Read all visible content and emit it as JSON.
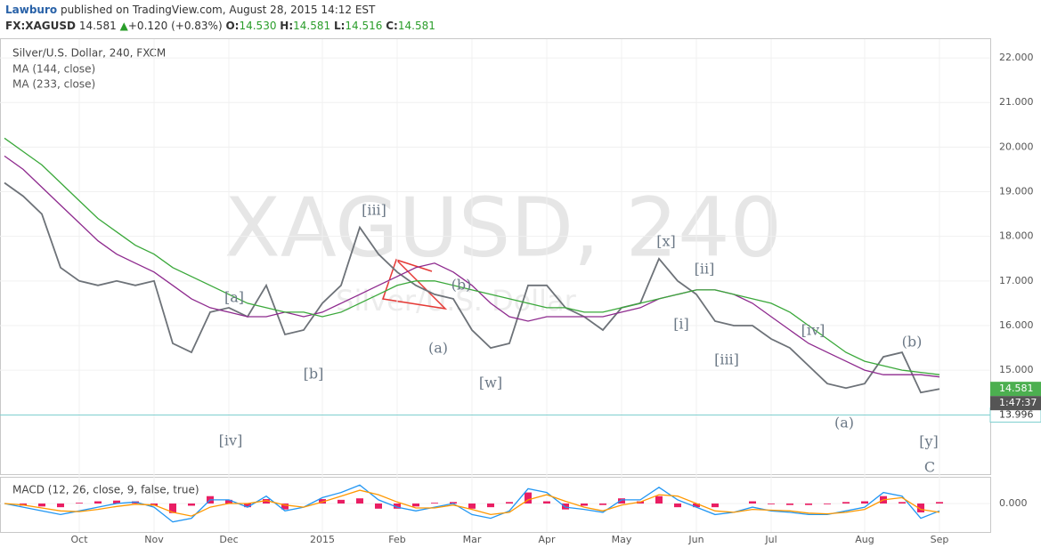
{
  "header": {
    "author": "Lawburo",
    "published": "published on TradingView.com, August 28, 2015 14:12 EST"
  },
  "quote": {
    "symbol": "FX:XAGUSD",
    "last": "14.581",
    "change": "+0.120 (+0.83%)",
    "open_label": "O:",
    "open": "14.530",
    "high_label": "H:",
    "high": "14.581",
    "low_label": "L:",
    "low": "14.516",
    "close_label": "C:",
    "close": "14.581"
  },
  "watermark": {
    "symbol": "XAGUSD, 240",
    "name": "Silver/U.S. Dollar"
  },
  "chart_data": [
    {
      "type": "line",
      "title": "Silver/U.S. Dollar, 240, FXCM",
      "categories": [
        null,
        null,
        null,
        null,
        "Oct",
        null,
        null,
        null,
        "Nov",
        null,
        null,
        null,
        "Dec",
        null,
        null,
        null,
        null,
        "2015",
        null,
        null,
        null,
        "Feb",
        null,
        null,
        null,
        "Mar",
        null,
        null,
        null,
        "Apr",
        null,
        null,
        null,
        "May",
        null,
        null,
        null,
        "Jun",
        null,
        null,
        null,
        "Jul",
        null,
        null,
        null,
        null,
        "Aug",
        null,
        null,
        null,
        "Sep"
      ],
      "series": [
        {
          "color": "#6d7278",
          "values": [
            19.2,
            18.9,
            18.5,
            17.3,
            17.0,
            16.9,
            17.0,
            16.9,
            17.0,
            15.6,
            15.4,
            16.3,
            16.4,
            16.2,
            16.9,
            15.8,
            15.9,
            16.5,
            16.9,
            18.2,
            17.6,
            17.2,
            16.9,
            16.7,
            16.6,
            15.9,
            15.5,
            15.6,
            16.9,
            16.9,
            16.4,
            16.2,
            15.9,
            16.4,
            16.5,
            17.5,
            17.0,
            16.7,
            16.1,
            16.0,
            16.0,
            15.7,
            15.5,
            15.1,
            14.7,
            14.6,
            14.7,
            15.3,
            15.4,
            14.5,
            14.58
          ]
        },
        {
          "name": "MA (144, close)",
          "color": "#8e2a8e",
          "values": [
            19.8,
            19.5,
            19.1,
            18.7,
            18.3,
            17.9,
            17.6,
            17.4,
            17.2,
            16.9,
            16.6,
            16.4,
            16.3,
            16.2,
            16.2,
            16.3,
            16.2,
            16.3,
            16.5,
            16.7,
            16.9,
            17.1,
            17.3,
            17.4,
            17.2,
            16.9,
            16.5,
            16.2,
            16.1,
            16.2,
            16.2,
            16.2,
            16.2,
            16.3,
            16.4,
            16.6,
            16.7,
            16.8,
            16.8,
            16.7,
            16.5,
            16.2,
            15.9,
            15.6,
            15.4,
            15.2,
            15.0,
            14.9,
            14.9,
            14.9,
            14.85
          ]
        },
        {
          "name": "MA (233, close)",
          "color": "#3aa83a",
          "values": [
            20.2,
            19.9,
            19.6,
            19.2,
            18.8,
            18.4,
            18.1,
            17.8,
            17.6,
            17.3,
            17.1,
            16.9,
            16.7,
            16.5,
            16.4,
            16.3,
            16.3,
            16.2,
            16.3,
            16.5,
            16.7,
            16.9,
            17.0,
            17.0,
            16.9,
            16.8,
            16.7,
            16.6,
            16.5,
            16.4,
            16.4,
            16.3,
            16.3,
            16.4,
            16.5,
            16.6,
            16.7,
            16.8,
            16.8,
            16.7,
            16.6,
            16.5,
            16.3,
            16.0,
            15.7,
            15.4,
            15.2,
            15.1,
            15.0,
            14.95,
            14.9
          ]
        }
      ],
      "ylim": [
        12.67,
        22.42
      ],
      "yticks": [
        {
          "value": 15,
          "label": "15.000"
        },
        {
          "value": 16,
          "label": "16.000"
        },
        {
          "value": 17,
          "label": "17.000"
        },
        {
          "value": 18,
          "label": "18.000"
        },
        {
          "value": 19,
          "label": "19.000"
        },
        {
          "value": 20,
          "label": "20.000"
        },
        {
          "value": 21,
          "label": "21.000"
        },
        {
          "value": 22,
          "label": "22.000"
        }
      ],
      "grid": true,
      "last": {
        "value": 14.581,
        "label": "14.581"
      },
      "countdown": "1:47:37",
      "hline": {
        "value": 13.996,
        "label": "13.996"
      },
      "annotations": [
        "[iii]",
        "[a]",
        "[b]",
        "[iv]",
        "(b)",
        "(a)",
        "[w]",
        "[x]",
        "[ii]",
        "[i]",
        "[iii]",
        "[iv]",
        "(b)",
        "(a)",
        "[y]",
        "C"
      ]
    },
    {
      "type": "line",
      "title": "MACD (12, 26, close, 9, false, true)",
      "series": [
        {
          "type": "bar",
          "color": "#e91e63",
          "values": [
            0,
            -0.03,
            -0.04,
            -0.05,
            0.01,
            0.03,
            0.04,
            0.03,
            -0.03,
            -0.13,
            -0.03,
            0.1,
            0.05,
            -0.05,
            0.06,
            -0.08,
            0,
            0.06,
            0.05,
            0.07,
            -0.07,
            -0.07,
            -0.04,
            0.01,
            0.02,
            -0.07,
            -0.05,
            0.02,
            0.15,
            0.03,
            -0.08,
            -0.03,
            -0.02,
            0.07,
            0.03,
            0.1,
            -0.05,
            -0.05,
            -0.05,
            0,
            0.03,
            -0.01,
            -0.02,
            -0.02,
            -0.01,
            0.02,
            0.03,
            0.1,
            0.02,
            -0.12,
            0.02
          ]
        },
        {
          "color": "#2196f3",
          "values": [
            0,
            -0.05,
            -0.1,
            -0.15,
            -0.1,
            -0.05,
            0,
            0.02,
            -0.05,
            -0.25,
            -0.2,
            0.05,
            0.05,
            -0.05,
            0.1,
            -0.1,
            -0.05,
            0.08,
            0.15,
            0.25,
            0.05,
            -0.05,
            -0.1,
            -0.05,
            0,
            -0.15,
            -0.2,
            -0.1,
            0.2,
            0.15,
            -0.05,
            -0.08,
            -0.12,
            0.05,
            0.05,
            0.22,
            0.05,
            -0.05,
            -0.15,
            -0.12,
            -0.05,
            -0.1,
            -0.12,
            -0.15,
            -0.15,
            -0.1,
            -0.05,
            0.15,
            0.1,
            -0.2,
            -0.1
          ]
        },
        {
          "color": "#ff9800",
          "values": [
            0,
            -0.02,
            -0.06,
            -0.1,
            -0.11,
            -0.08,
            -0.04,
            -0.01,
            -0.02,
            -0.12,
            -0.17,
            -0.05,
            0,
            0,
            0.04,
            -0.02,
            -0.05,
            0.02,
            0.1,
            0.18,
            0.12,
            0.02,
            -0.06,
            -0.06,
            -0.02,
            -0.08,
            -0.15,
            -0.12,
            0.05,
            0.12,
            0.03,
            -0.05,
            -0.1,
            -0.02,
            0.02,
            0.12,
            0.1,
            0,
            -0.1,
            -0.12,
            -0.08,
            -0.09,
            -0.1,
            -0.13,
            -0.14,
            -0.12,
            -0.08,
            0.05,
            0.08,
            -0.08,
            -0.12
          ]
        }
      ],
      "ylim": [
        -0.35,
        0.35
      ],
      "yticks": [
        {
          "value": 0,
          "label": "0.000"
        }
      ]
    }
  ]
}
